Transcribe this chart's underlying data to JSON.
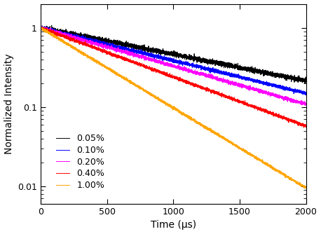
{
  "title": "",
  "xlabel": "Time (μs)",
  "ylabel": "Normalized Intensity",
  "xlim": [
    0,
    2000
  ],
  "ylim": [
    0.006,
    2.0
  ],
  "series": [
    {
      "label": "0.05%",
      "color": "black",
      "tau": 1300,
      "noise": 0.035,
      "y0": 1.0
    },
    {
      "label": "0.10%",
      "color": "blue",
      "tau": 1050,
      "noise": 0.025,
      "y0": 1.0
    },
    {
      "label": "0.20%",
      "color": "magenta",
      "tau": 900,
      "noise": 0.025,
      "y0": 1.0
    },
    {
      "label": "0.40%",
      "color": "red",
      "tau": 700,
      "noise": 0.022,
      "y0": 1.0
    },
    {
      "label": "1.00%",
      "color": "orange",
      "tau": 430,
      "noise": 0.02,
      "y0": 1.0
    }
  ],
  "yticks": [
    0.01,
    0.1,
    1
  ],
  "ytick_labels": [
    "0.01",
    "0.1",
    "1"
  ],
  "xticks": [
    0,
    500,
    1000,
    1500,
    2000
  ],
  "legend_loc": "lower left",
  "legend_fontsize": 9,
  "tick_fontsize": 9,
  "label_fontsize": 10,
  "linewidth": 0.7,
  "n_points": 5000,
  "seed": 42
}
